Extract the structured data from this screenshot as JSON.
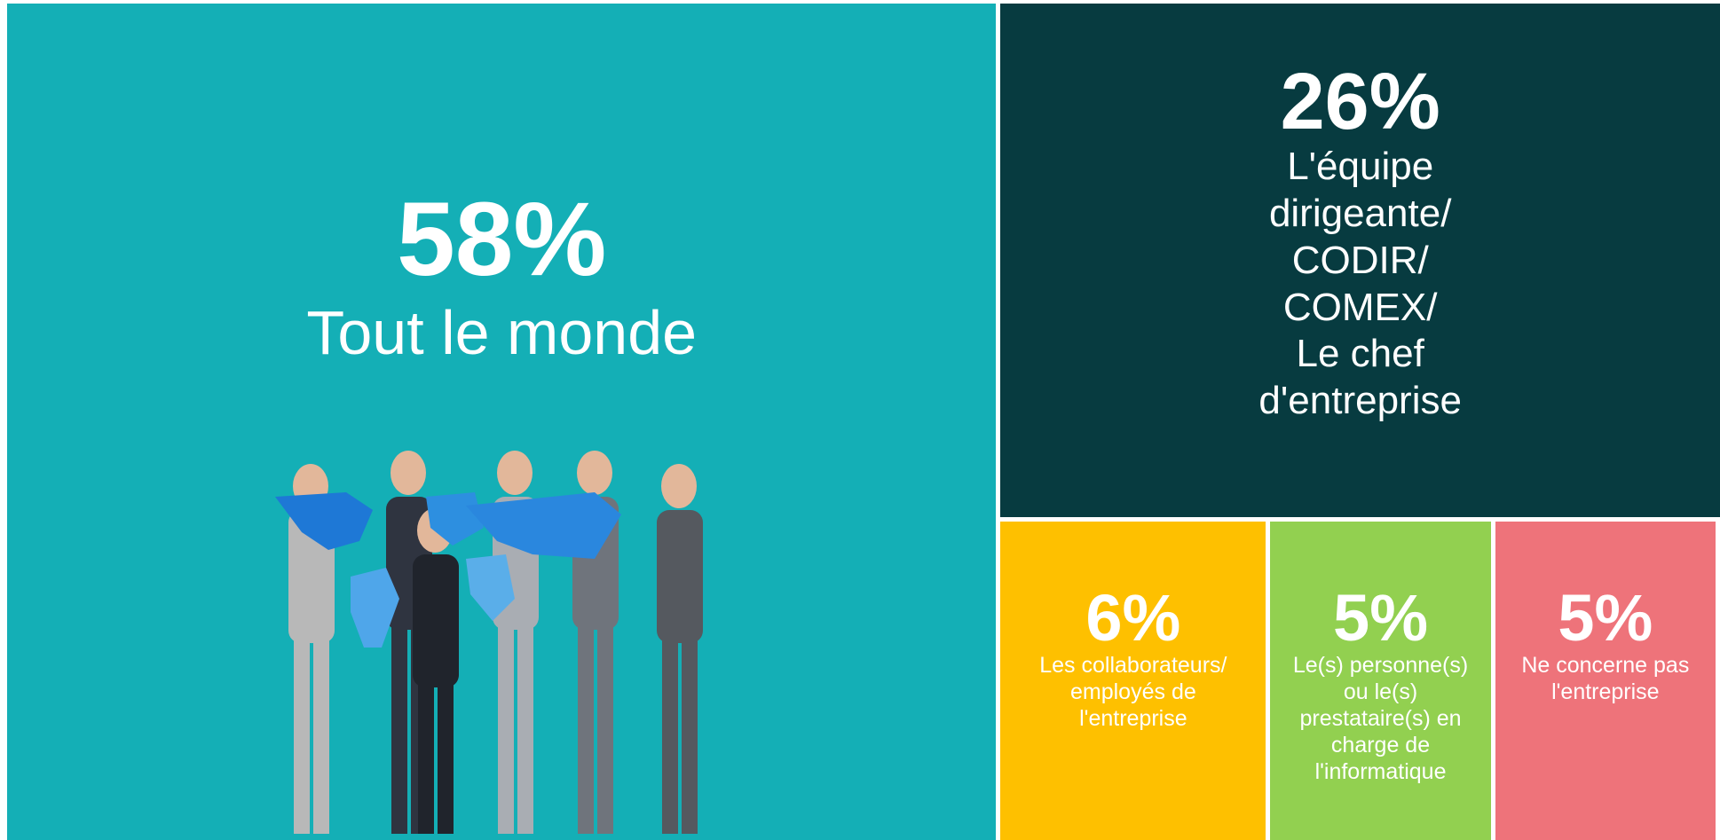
{
  "chart_data": {
    "type": "treemap",
    "categories": [
      "Tout le monde",
      "L'équipe dirigeante/ CODIR/ COMEX/ Le chef d'entreprise",
      "Les collaborateurs/ employés de l'entreprise",
      "Le(s) personne(s) ou le(s) prestataire(s) en charge de l'informatique",
      "Ne concerne pas l'entreprise"
    ],
    "values": [
      58,
      26,
      6,
      5,
      5
    ],
    "value_labels": [
      "58%",
      "26%",
      "6%",
      "5%",
      "5%"
    ],
    "colors": [
      "#14afb6",
      "#073b40",
      "#fec000",
      "#92d050",
      "#ee737a"
    ]
  }
}
